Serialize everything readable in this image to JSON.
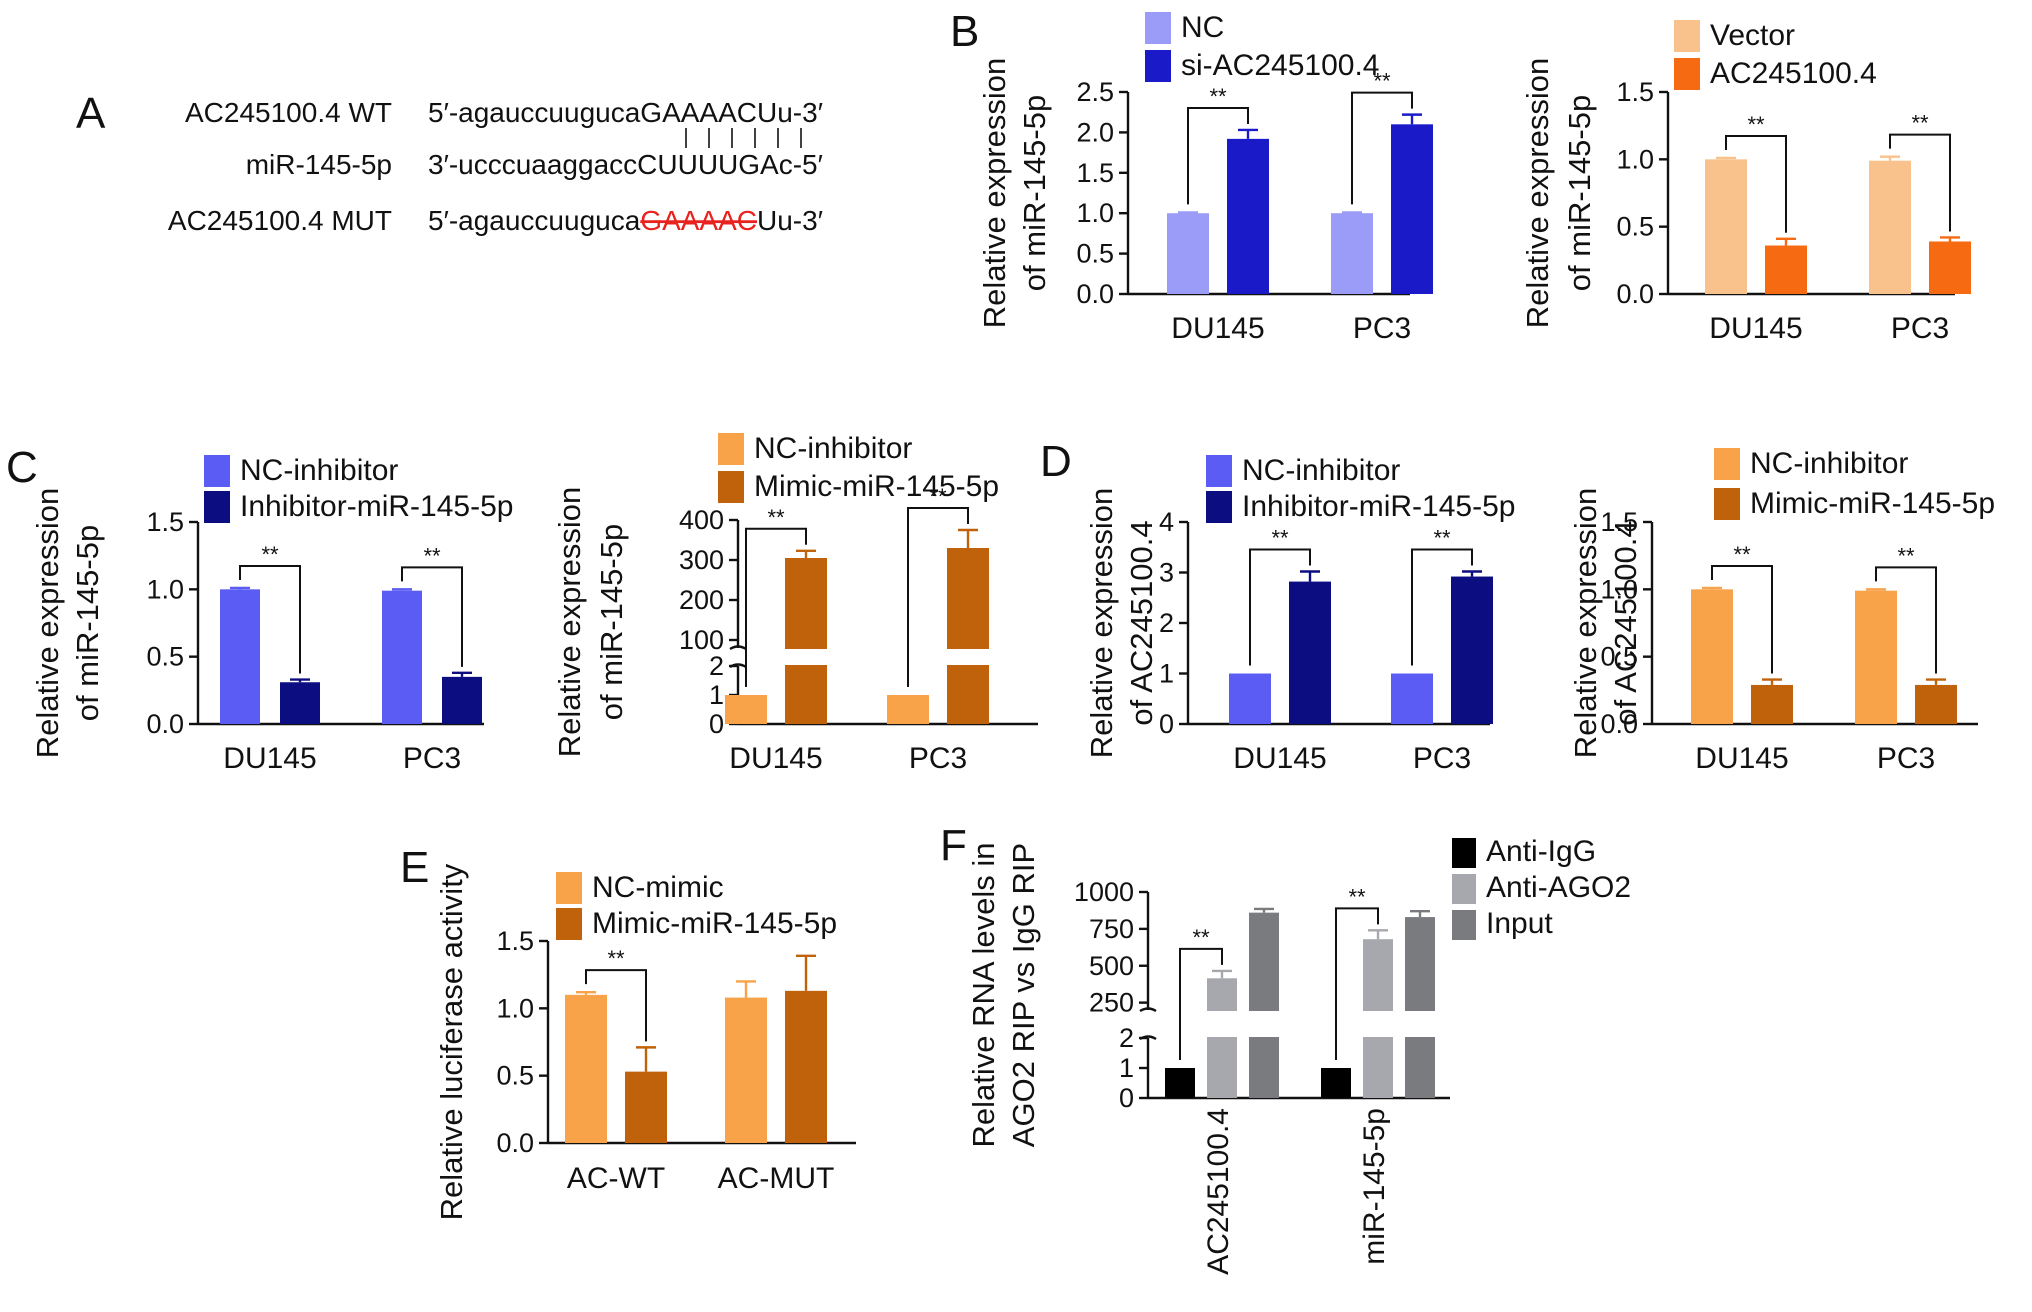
{
  "panels": {
    "a": "A",
    "b": "B",
    "c": "C",
    "d": "D",
    "e": "E",
    "f": "F"
  },
  "panel_a": {
    "wt_label": "AC245100.4 WT",
    "wt_prefix": "5′-agauccuuguca",
    "wt_core": "GAAAAC",
    "wt_suffix": "Uu-3′",
    "mir_label": "miR-145-5p",
    "mir_prefix": "3′-ucccuaaggacc",
    "mir_core": "CUUUUG",
    "mir_suffix": "Ac-5′",
    "mut_label": "AC245100.4 MUT",
    "mut_prefix": "5′-agauccuuguca",
    "mut_core": "GAAAAC",
    "mut_suffix": "Uu-3′",
    "mut_color": "#e8231f"
  },
  "significance_marker": "**",
  "chart_data": [
    {
      "id": "B1",
      "type": "bar",
      "categories": [
        "DU145",
        "PC3"
      ],
      "ylabel_lines": [
        "Relative expression",
        "of miR-145-5p"
      ],
      "ylim": [
        0,
        2.5
      ],
      "yticks": [
        "0.0",
        "0.5",
        "1.0",
        "1.5",
        "2.0",
        "2.5"
      ],
      "series": [
        {
          "name": "NC",
          "values": [
            1.0,
            1.0
          ],
          "errors": [
            0.01,
            0.01
          ],
          "color": "#9a9cf7"
        },
        {
          "name": "si-AC245100.4",
          "values": [
            1.92,
            2.1
          ],
          "errors": [
            0.11,
            0.12
          ],
          "color": "#1a1ac9"
        }
      ],
      "significance": [
        "**",
        "**"
      ]
    },
    {
      "id": "B2",
      "type": "bar",
      "categories": [
        "DU145",
        "PC3"
      ],
      "ylabel_lines": [
        "Relative expression",
        "of miR-145-5p"
      ],
      "ylim": [
        0,
        1.5
      ],
      "yticks": [
        "0.0",
        "0.5",
        "1.0",
        "1.5"
      ],
      "series": [
        {
          "name": "Vector",
          "values": [
            1.0,
            0.99
          ],
          "errors": [
            0.01,
            0.03
          ],
          "color": "#f9c28d"
        },
        {
          "name": "AC245100.4",
          "values": [
            0.36,
            0.39
          ],
          "errors": [
            0.05,
            0.03
          ],
          "color": "#f66a12"
        }
      ],
      "significance": [
        "**",
        "**"
      ]
    },
    {
      "id": "C1",
      "type": "bar",
      "categories": [
        "DU145",
        "PC3"
      ],
      "ylabel_lines": [
        "Relative expression",
        "of miR-145-5p"
      ],
      "ylim": [
        0,
        1.5
      ],
      "yticks": [
        "0.0",
        "0.5",
        "1.0",
        "1.5"
      ],
      "series": [
        {
          "name": "NC-inhibitor",
          "values": [
            1.0,
            0.99
          ],
          "errors": [
            0.01,
            0.01
          ],
          "color": "#5a5cf4"
        },
        {
          "name": "Inhibitor-miR-145-5p",
          "values": [
            0.31,
            0.35
          ],
          "errors": [
            0.02,
            0.03
          ],
          "color": "#0d0d82"
        }
      ],
      "significance": [
        "**",
        "**"
      ]
    },
    {
      "id": "C2",
      "type": "bar",
      "categories": [
        "DU145",
        "PC3"
      ],
      "ylabel_lines": [
        "Relative expression",
        "of miR-145-5p"
      ],
      "broken_axis": true,
      "lower_range": [
        0,
        2
      ],
      "upper_range": [
        80,
        400
      ],
      "yticks_lower": [
        "0",
        "1",
        "2"
      ],
      "yticks_upper": [
        "100",
        "200",
        "300",
        "400"
      ],
      "series": [
        {
          "name": "NC-inhibitor",
          "values": [
            1.0,
            1.0
          ],
          "errors": [
            0,
            0
          ],
          "color": "#f8a24a"
        },
        {
          "name": "Mimic-miR-145-5p",
          "values": [
            305,
            330
          ],
          "errors": [
            18,
            45
          ],
          "color": "#c0620c"
        }
      ],
      "significance": [
        "**",
        "**"
      ]
    },
    {
      "id": "D1",
      "type": "bar",
      "categories": [
        "DU145",
        "PC3"
      ],
      "ylabel_lines": [
        "Relative expression",
        "of AC245100.4"
      ],
      "ylim": [
        0,
        4
      ],
      "yticks": [
        "0",
        "1",
        "2",
        "3",
        "4"
      ],
      "series": [
        {
          "name": "NC-inhibitor",
          "values": [
            1.0,
            1.0
          ],
          "errors": [
            0,
            0
          ],
          "color": "#5a5cf4"
        },
        {
          "name": "Inhibitor-miR-145-5p",
          "values": [
            2.82,
            2.92
          ],
          "errors": [
            0.2,
            0.1
          ],
          "color": "#0d0d82"
        }
      ],
      "significance": [
        "**",
        "**"
      ]
    },
    {
      "id": "D2",
      "type": "bar",
      "categories": [
        "DU145",
        "PC3"
      ],
      "ylabel_lines": [
        "Relative expression",
        "of AC245100.4"
      ],
      "ylim": [
        0,
        1.5
      ],
      "yticks": [
        "0.0",
        "0.5",
        "1.0",
        "1.5"
      ],
      "series": [
        {
          "name": "NC-inhibitor",
          "values": [
            1.0,
            0.99
          ],
          "errors": [
            0.01,
            0.01
          ],
          "color": "#f8a24a"
        },
        {
          "name": "Mimic-miR-145-5p",
          "values": [
            0.29,
            0.29
          ],
          "errors": [
            0.04,
            0.04
          ],
          "color": "#c0620c"
        }
      ],
      "significance": [
        "**",
        "**"
      ]
    },
    {
      "id": "E",
      "type": "bar",
      "categories": [
        "AC-WT",
        "AC-MUT"
      ],
      "ylabel_lines": [
        "Relative luciferase activity"
      ],
      "ylim": [
        0,
        1.5
      ],
      "yticks": [
        "0.0",
        "0.5",
        "1.0",
        "1.5"
      ],
      "series": [
        {
          "name": "NC-mimic",
          "values": [
            1.1,
            1.08
          ],
          "errors": [
            0.02,
            0.12
          ],
          "color": "#f8a24a"
        },
        {
          "name": "Mimic-miR-145-5p",
          "values": [
            0.53,
            1.13
          ],
          "errors": [
            0.18,
            0.26
          ],
          "color": "#c0620c"
        }
      ],
      "significance": [
        "**",
        ""
      ]
    },
    {
      "id": "F",
      "type": "bar",
      "categories": [
        "AC245100.4",
        "miR-145-5p"
      ],
      "ylabel_lines": [
        "Relative RNA levels in",
        "AGO2 RIP vs IgG RIP"
      ],
      "broken_axis": true,
      "lower_range": [
        0,
        2
      ],
      "upper_range": [
        200,
        1000
      ],
      "yticks_lower": [
        "0",
        "1",
        "2"
      ],
      "yticks_upper": [
        "250",
        "500",
        "750",
        "1000"
      ],
      "series": [
        {
          "name": "Anti-IgG",
          "values": [
            1.0,
            1.0
          ],
          "errors": [
            0,
            0
          ],
          "color": "#000000"
        },
        {
          "name": "Anti-AGO2",
          "values": [
            415,
            680
          ],
          "errors": [
            50,
            60
          ],
          "color": "#a7a8ad"
        },
        {
          "name": "Input",
          "values": [
            860,
            830
          ],
          "errors": [
            25,
            40
          ],
          "color": "#7a7b7f"
        }
      ],
      "significance": [
        "**",
        "**"
      ]
    }
  ]
}
